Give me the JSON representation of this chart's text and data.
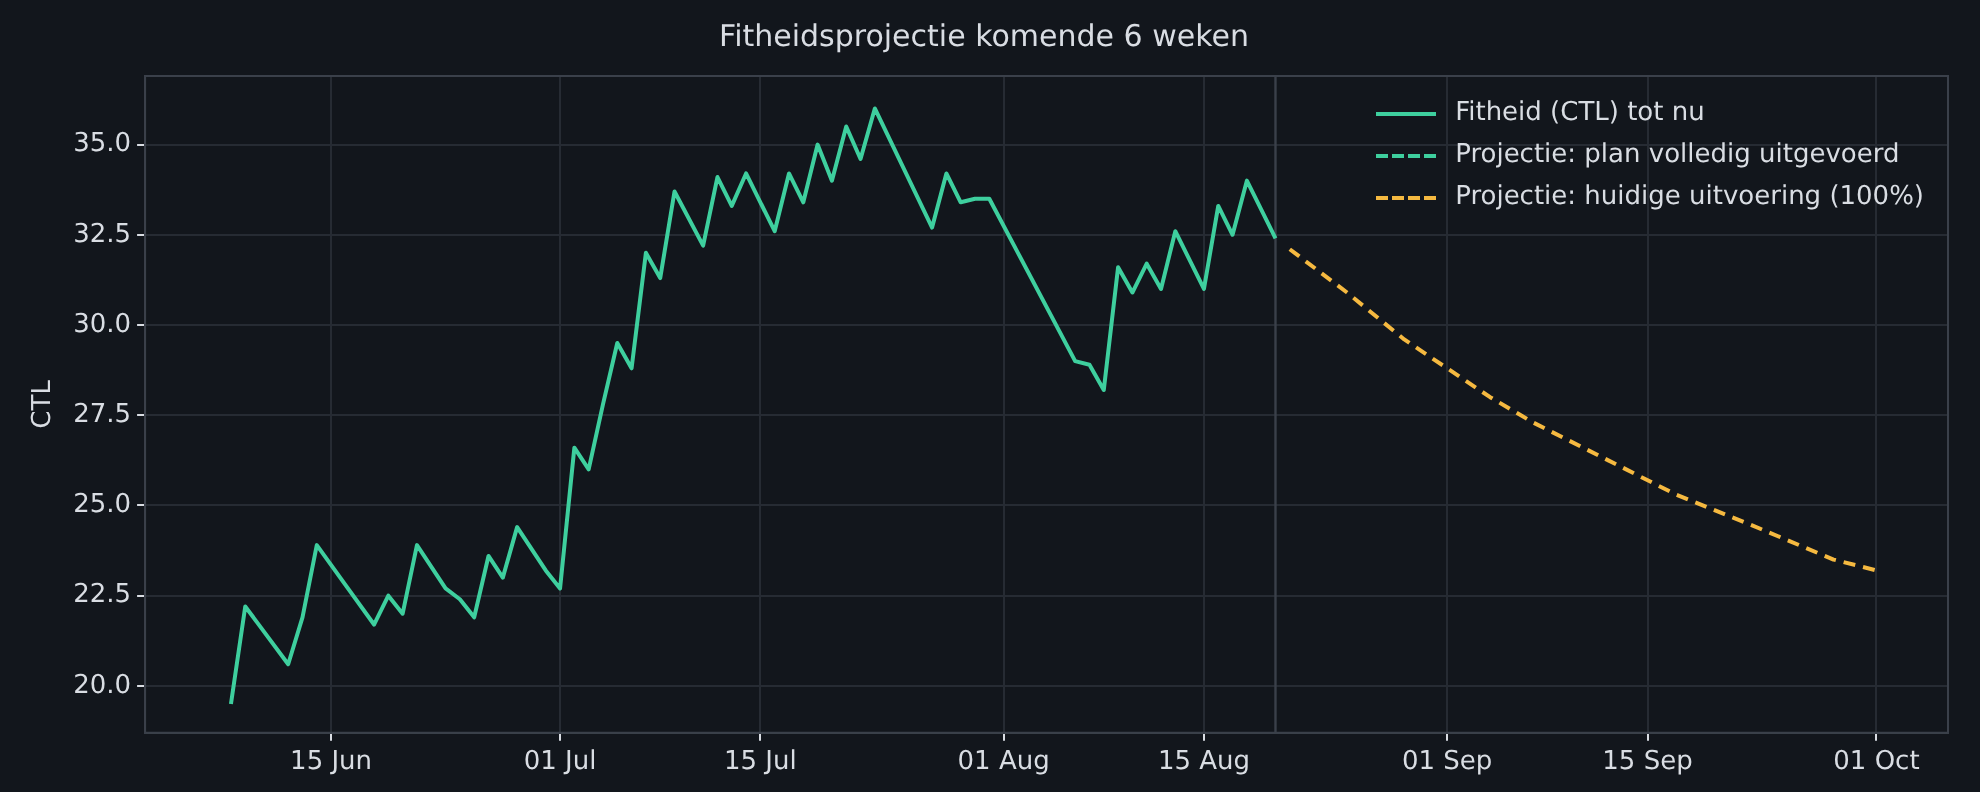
{
  "chart_data": {
    "type": "line",
    "title": "Fitheidsprojectie komende 6 weken",
    "ylabel": "CTL",
    "xlim": [
      "--06-02",
      "--10-06"
    ],
    "xticks": [
      {
        "value": "--06-15",
        "label": "15 Jun"
      },
      {
        "value": "--07-01",
        "label": "01 Jul"
      },
      {
        "value": "--07-15",
        "label": "15 Jul"
      },
      {
        "value": "--08-01",
        "label": "01 Aug"
      },
      {
        "value": "--08-15",
        "label": "15 Aug"
      },
      {
        "value": "--09-01",
        "label": "01 Sep"
      },
      {
        "value": "--09-15",
        "label": "15 Sep"
      },
      {
        "value": "--10-01",
        "label": "01 Oct"
      }
    ],
    "ylim": [
      18.7,
      36.9
    ],
    "yticks": [
      {
        "value": 20,
        "label": "20.0"
      },
      {
        "value": 22.5,
        "label": "22.5"
      },
      {
        "value": 25,
        "label": "25.0"
      },
      {
        "value": 27.5,
        "label": "27.5"
      },
      {
        "value": 30,
        "label": "30.0"
      },
      {
        "value": 32.5,
        "label": "32.5"
      },
      {
        "value": 35,
        "label": "35.0"
      }
    ],
    "grid": true,
    "legend": "top right",
    "marker": "none",
    "ref_lines": [
      {
        "axis": "x",
        "value": "--08-20",
        "color": "#3a404a"
      }
    ],
    "series": [
      {
        "name": "Fitheid (CTL) tot nu",
        "color": "#3ecf9e",
        "line_style": "solid",
        "x": [
          "--06-08",
          "--06-09",
          "--06-12",
          "--06-13",
          "--06-14",
          "--06-16",
          "--06-18",
          "--06-19",
          "--06-20",
          "--06-21",
          "--06-23",
          "--06-24",
          "--06-25",
          "--06-26",
          "--06-27",
          "--06-28",
          "--06-30",
          "--07-01",
          "--07-02",
          "--07-03",
          "--07-04",
          "--07-05",
          "--07-06",
          "--07-07",
          "--07-08",
          "--07-09",
          "--07-11",
          "--07-12",
          "--07-13",
          "--07-14",
          "--07-16",
          "--07-17",
          "--07-18",
          "--07-19",
          "--07-20",
          "--07-21",
          "--07-22",
          "--07-23",
          "--07-27",
          "--07-28",
          "--07-29",
          "--07-30",
          "--07-31",
          "--08-02",
          "--08-06",
          "--08-07",
          "--08-08",
          "--08-09",
          "--08-10",
          "--08-11",
          "--08-12",
          "--08-13",
          "--08-15",
          "--08-16",
          "--08-17",
          "--08-18",
          "--08-20"
        ],
        "values": [
          19.5,
          22.2,
          20.6,
          21.9,
          23.9,
          22.8,
          21.7,
          22.5,
          22.0,
          23.9,
          22.7,
          22.4,
          21.9,
          23.6,
          23.0,
          24.4,
          23.2,
          22.7,
          26.6,
          26.0,
          27.8,
          29.5,
          28.8,
          32.0,
          31.3,
          33.7,
          32.2,
          34.1,
          33.3,
          34.2,
          32.6,
          34.2,
          33.4,
          35.0,
          34.0,
          35.5,
          34.6,
          36.0,
          32.7,
          34.2,
          33.4,
          33.5,
          33.5,
          32.0,
          29.0,
          28.9,
          28.2,
          31.6,
          30.9,
          31.7,
          31.0,
          32.6,
          31.0,
          33.3,
          32.5,
          34.0,
          32.4
        ]
      },
      {
        "name": "Projectie: plan volledig uitgevoerd",
        "color": "#3ecf9e",
        "line_style": "dashed"
      },
      {
        "name": "Projectie: huidige uitvoering (100%)",
        "color": "#f5b940",
        "line_style": "dashed",
        "x": [
          "--08-21",
          "--08-25",
          "--08-29",
          "--09-01",
          "--09-04",
          "--09-07",
          "--09-12",
          "--09-17",
          "--09-22",
          "--09-28",
          "--10-01"
        ],
        "values": [
          32.1,
          30.9,
          29.6,
          28.8,
          28.0,
          27.3,
          26.3,
          25.3,
          24.5,
          23.5,
          23.2
        ]
      }
    ]
  }
}
